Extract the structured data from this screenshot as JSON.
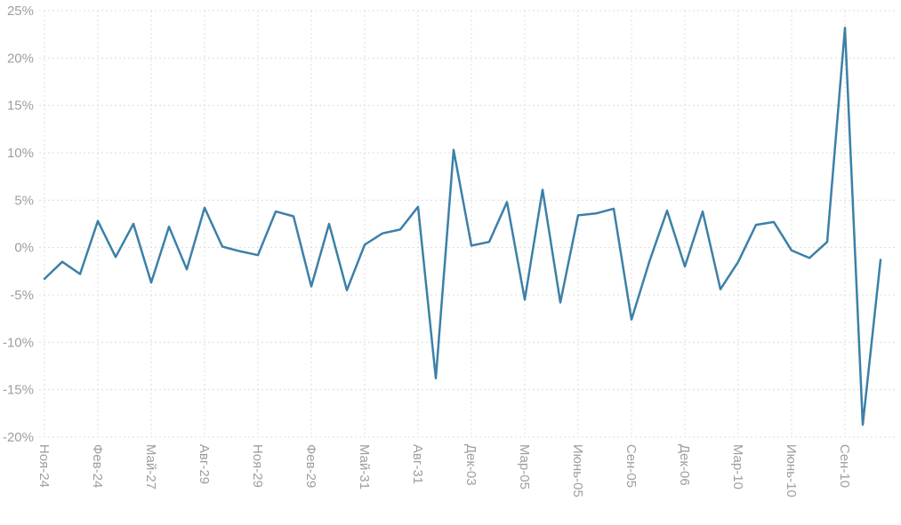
{
  "chart_data": {
    "type": "line",
    "title": "",
    "subtitle": "",
    "legend": "none",
    "grid": "dashed horizontal and vertical gridlines, no axis border",
    "x_tick_labels": [
      "Ноя-24",
      "Фев-24",
      "Май-27",
      "Авг-29",
      "Ноя-29",
      "Фев-29",
      "Май-31",
      "Авг-31",
      "Дек-03",
      "Мар-05",
      "Июнь-05",
      "Сен-05",
      "Дек-06",
      "Мар-10",
      "Июнь-10",
      "Сен-10"
    ],
    "x_label_rotation_deg": 90,
    "points_per_label": 3,
    "values": [
      -3.3,
      -1.5,
      -2.8,
      2.8,
      -1.0,
      2.5,
      -3.7,
      2.2,
      -2.3,
      4.2,
      0.1,
      -0.4,
      -0.8,
      3.8,
      3.3,
      -4.1,
      2.5,
      -4.5,
      0.3,
      1.5,
      1.9,
      4.3,
      -13.8,
      10.3,
      0.2,
      0.6,
      4.8,
      -5.5,
      6.1,
      -5.8,
      3.4,
      3.6,
      4.1,
      -7.6,
      -1.5,
      3.9,
      -2.0,
      3.8,
      -4.4,
      -1.5,
      2.4,
      2.7,
      -0.3,
      -1.1,
      0.6,
      23.2,
      -18.7,
      -1.3
    ],
    "values_unit": "%",
    "ylim": [
      -20,
      25
    ],
    "y_ticks": [
      25,
      20,
      15,
      10,
      5,
      0,
      -5,
      -10,
      -15,
      -20
    ],
    "y_tick_labels": [
      "25%",
      "20%",
      "15%",
      "10%",
      "5%",
      "0%",
      "-5%",
      "-10%",
      "-15%",
      "-20%"
    ],
    "colors": {
      "line": "#3c80a8",
      "grid": "#dcdcdc",
      "tick_label": "#9e9e9e",
      "background": "#ffffff"
    }
  }
}
